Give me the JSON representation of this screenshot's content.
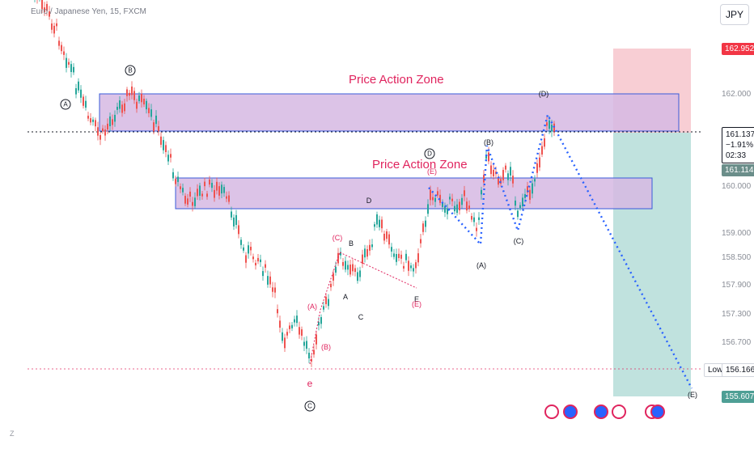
{
  "chart": {
    "symbol_title": "Euro / Japanese Yen, 15, FXCM",
    "currency": "JPY",
    "zones": [
      "Price Action Zone",
      "Price Action Zone"
    ]
  },
  "axis": {
    "ticks": [
      "162.000",
      "160.000",
      "159.000",
      "158.500",
      "157.900",
      "157.300",
      "156.700"
    ]
  },
  "tags": {
    "target_top": "162.952",
    "current_price": "161.137",
    "change_pct": "−1.91%",
    "countdown": "02:33",
    "entry": "161.114",
    "low_label": "Low",
    "low_value": "156.166",
    "stop_bottom": "155.607"
  },
  "waves": {
    "A_circ": "A",
    "B_circ": "B",
    "C_circ": "C",
    "D_circ": "D",
    "e": "e",
    "A_paren_red": "(A)",
    "B_paren_red": "(B)",
    "C_paren_red": "(C)",
    "a": "A",
    "b": "B",
    "c": "C",
    "d": "D",
    "e_upper": "E",
    "E_paren_red": "(E)",
    "E_red2": "(E)",
    "A_wave": "(A)",
    "B_wave": "(B)",
    "C_wave": "(C)",
    "D_wave": "(D)",
    "E_wave": "(E)"
  },
  "corners": {
    "z": "Z",
    "a": "A"
  },
  "colors": {
    "zone_fill": "#d6b8e3",
    "zone_border": "#3a5bd9",
    "label_red": "#e0245e",
    "projection": "#2962ff",
    "target_fill": "#f7c6cc",
    "stop_fill": "#b5ddd8",
    "candle_up": "#26a69a",
    "candle_down": "#ef5350"
  }
}
